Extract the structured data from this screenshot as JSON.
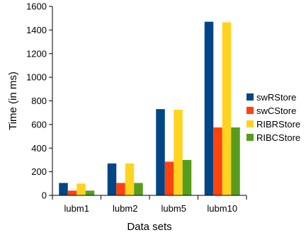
{
  "chart_data": {
    "type": "bar",
    "categories": [
      "lubm1",
      "lubm2",
      "lubm5",
      "lubm10"
    ],
    "series": [
      {
        "name": "swRStore",
        "color": "#004586",
        "values": [
          105,
          270,
          730,
          1470
        ]
      },
      {
        "name": "swCStore",
        "color": "#ff420e",
        "values": [
          40,
          105,
          285,
          575
        ]
      },
      {
        "name": "RIBRStore",
        "color": "#ffd320",
        "values": [
          100,
          270,
          725,
          1465
        ]
      },
      {
        "name": "RIBCStore",
        "color": "#579d1c",
        "values": [
          40,
          105,
          300,
          575
        ]
      }
    ],
    "yticks": [
      "0",
      "200",
      "400",
      "600",
      "800",
      "1000",
      "1200",
      "1400",
      "1600"
    ],
    "ylim": [
      0,
      1600
    ],
    "xlabel": "Data sets",
    "ylabel": "Time (in ms)",
    "legend_position": "right",
    "grid": false
  }
}
